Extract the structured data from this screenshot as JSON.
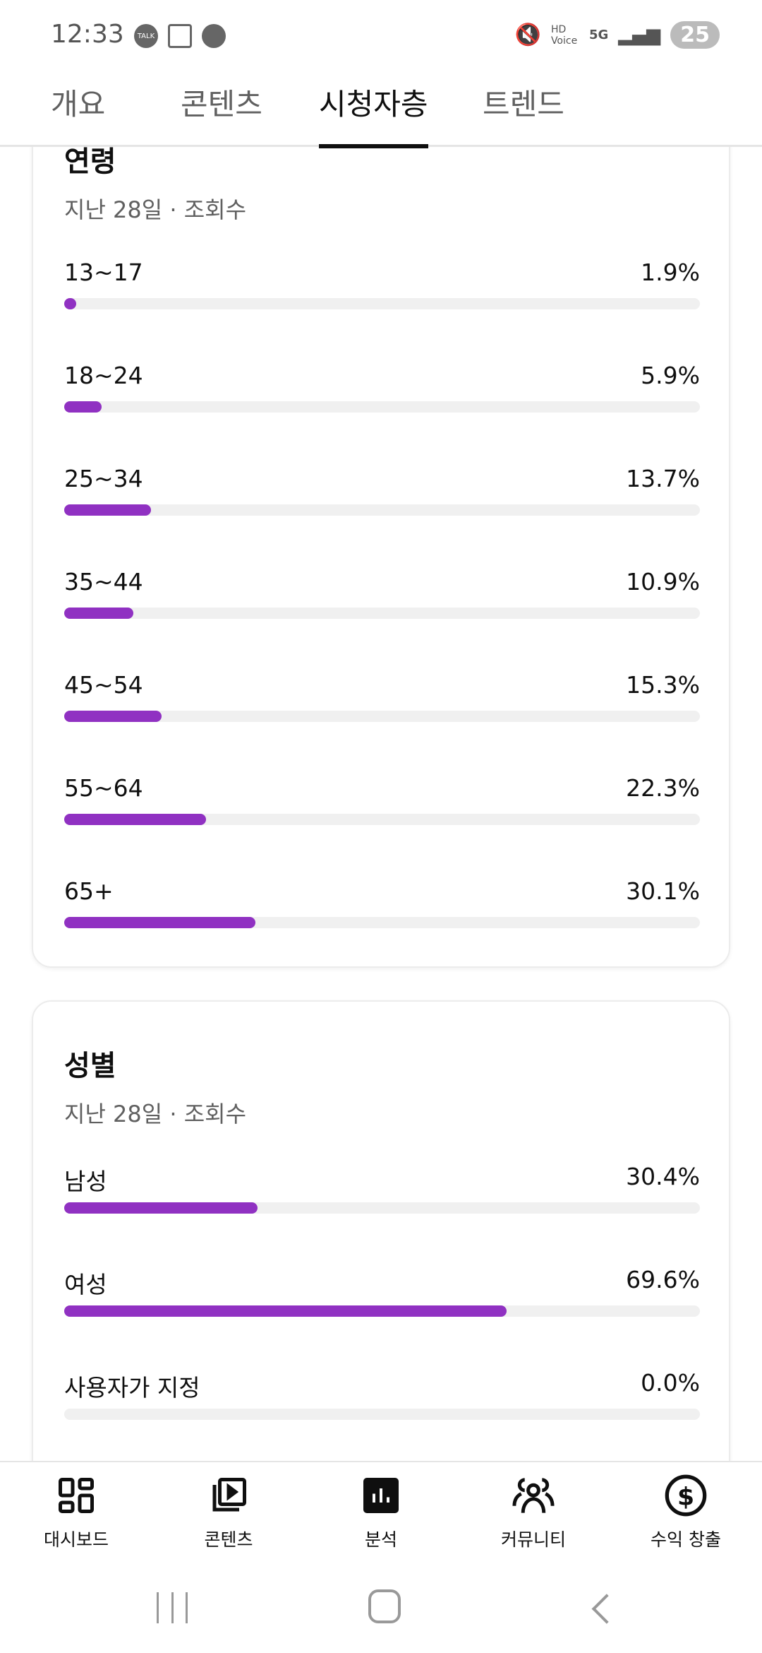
{
  "status_bar": {
    "time": "12:33",
    "notif_icons": [
      "kakaotalk-icon",
      "screenshot-icon",
      "threads-icon"
    ],
    "hd_voice": "HD Voice",
    "network": "5G",
    "battery": "25"
  },
  "tabs": [
    {
      "label": "개요"
    },
    {
      "label": "콘텐츠"
    },
    {
      "label": "시청자층",
      "active": true
    },
    {
      "label": "트렌드"
    }
  ],
  "age_card": {
    "title": "연령",
    "subtitle": "지난 28일 · 조회수",
    "rows": [
      {
        "label": "13~17",
        "value": "1.9%",
        "percent": 1.9
      },
      {
        "label": "18~24",
        "value": "5.9%",
        "percent": 5.9
      },
      {
        "label": "25~34",
        "value": "13.7%",
        "percent": 13.7
      },
      {
        "label": "35~44",
        "value": "10.9%",
        "percent": 10.9
      },
      {
        "label": "45~54",
        "value": "15.3%",
        "percent": 15.3
      },
      {
        "label": "55~64",
        "value": "22.3%",
        "percent": 22.3
      },
      {
        "label": "65+",
        "value": "30.1%",
        "percent": 30.1
      }
    ]
  },
  "gender_card": {
    "title": "성별",
    "subtitle": "지난 28일 · 조회수",
    "rows": [
      {
        "label": "남성",
        "value": "30.4%",
        "percent": 30.4
      },
      {
        "label": "여성",
        "value": "69.6%",
        "percent": 69.6
      },
      {
        "label": "사용자가 지정",
        "value": "0.0%",
        "percent": 0
      }
    ]
  },
  "bottom_nav": [
    {
      "label": "대시보드",
      "icon": "dashboard-icon"
    },
    {
      "label": "콘텐츠",
      "icon": "content-icon"
    },
    {
      "label": "분석",
      "icon": "analytics-icon",
      "active": true
    },
    {
      "label": "커뮤니티",
      "icon": "community-icon"
    },
    {
      "label": "수익 창출",
      "icon": "monetization-icon"
    }
  ],
  "colors": {
    "bar": "#9031c2",
    "track": "#f0f0f0"
  }
}
